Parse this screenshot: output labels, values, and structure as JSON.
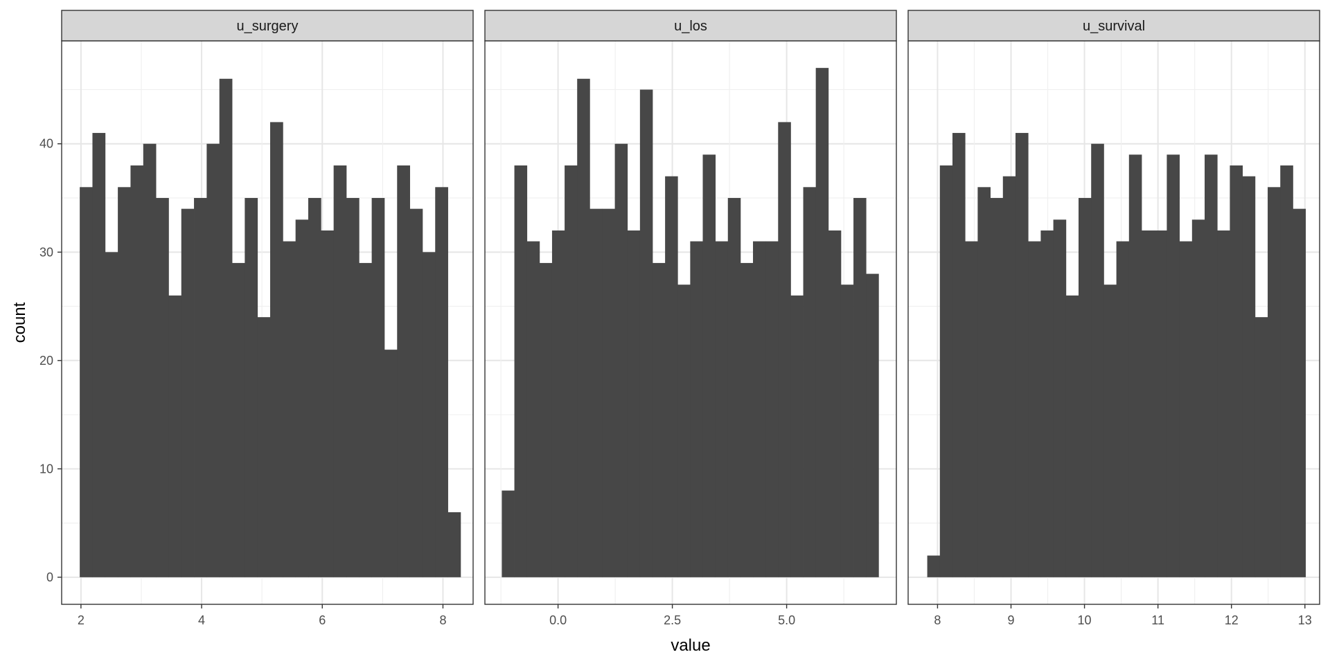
{
  "chart_data": {
    "type": "bar",
    "xlabel": "value",
    "ylabel": "count",
    "ylim": [
      -2.5,
      49.5
    ],
    "y_ticks": [
      0,
      10,
      20,
      30,
      40
    ],
    "y_tick_labels": [
      "0",
      "10",
      "20",
      "30",
      "40"
    ],
    "grid": true,
    "legend": "none",
    "bar_color": "#474747",
    "panel_strip_color": "#d6d6d6",
    "panels": [
      {
        "title": "u_surgery",
        "xlim": [
          1.68,
          8.5
        ],
        "x_ticks": [
          2,
          4,
          6,
          8
        ],
        "x_tick_labels": [
          "2",
          "4",
          "6",
          "8"
        ],
        "bin_start": 1.98,
        "bin_width": 0.2104,
        "counts": [
          36,
          41,
          30,
          36,
          38,
          40,
          35,
          26,
          34,
          35,
          40,
          46,
          29,
          35,
          24,
          42,
          31,
          33,
          35,
          32,
          38,
          35,
          29,
          35,
          21,
          38,
          34,
          30,
          36,
          6
        ]
      },
      {
        "title": "u_los",
        "xlim": [
          -1.6,
          7.4
        ],
        "x_ticks": [
          0.0,
          2.5,
          5.0
        ],
        "x_tick_labels": [
          "0.0",
          "2.5",
          "5.0"
        ],
        "bin_start": -1.23,
        "bin_width": 0.2747,
        "counts": [
          8,
          38,
          31,
          29,
          32,
          38,
          46,
          34,
          34,
          40,
          32,
          45,
          29,
          37,
          27,
          31,
          39,
          31,
          35,
          29,
          31,
          31,
          42,
          26,
          36,
          47,
          32,
          27,
          35,
          28
        ]
      },
      {
        "title": "u_survival",
        "xlim": [
          7.6,
          13.2
        ],
        "x_ticks": [
          8,
          9,
          10,
          11,
          12,
          13
        ],
        "x_tick_labels": [
          "8",
          "9",
          "10",
          "11",
          "12",
          "13"
        ],
        "bin_start": 7.86,
        "bin_width": 0.1716,
        "counts": [
          2,
          38,
          41,
          31,
          36,
          35,
          37,
          41,
          31,
          32,
          33,
          26,
          35,
          40,
          27,
          31,
          39,
          32,
          32,
          39,
          31,
          33,
          39,
          32,
          38,
          37,
          24,
          36,
          38,
          34
        ]
      }
    ]
  }
}
